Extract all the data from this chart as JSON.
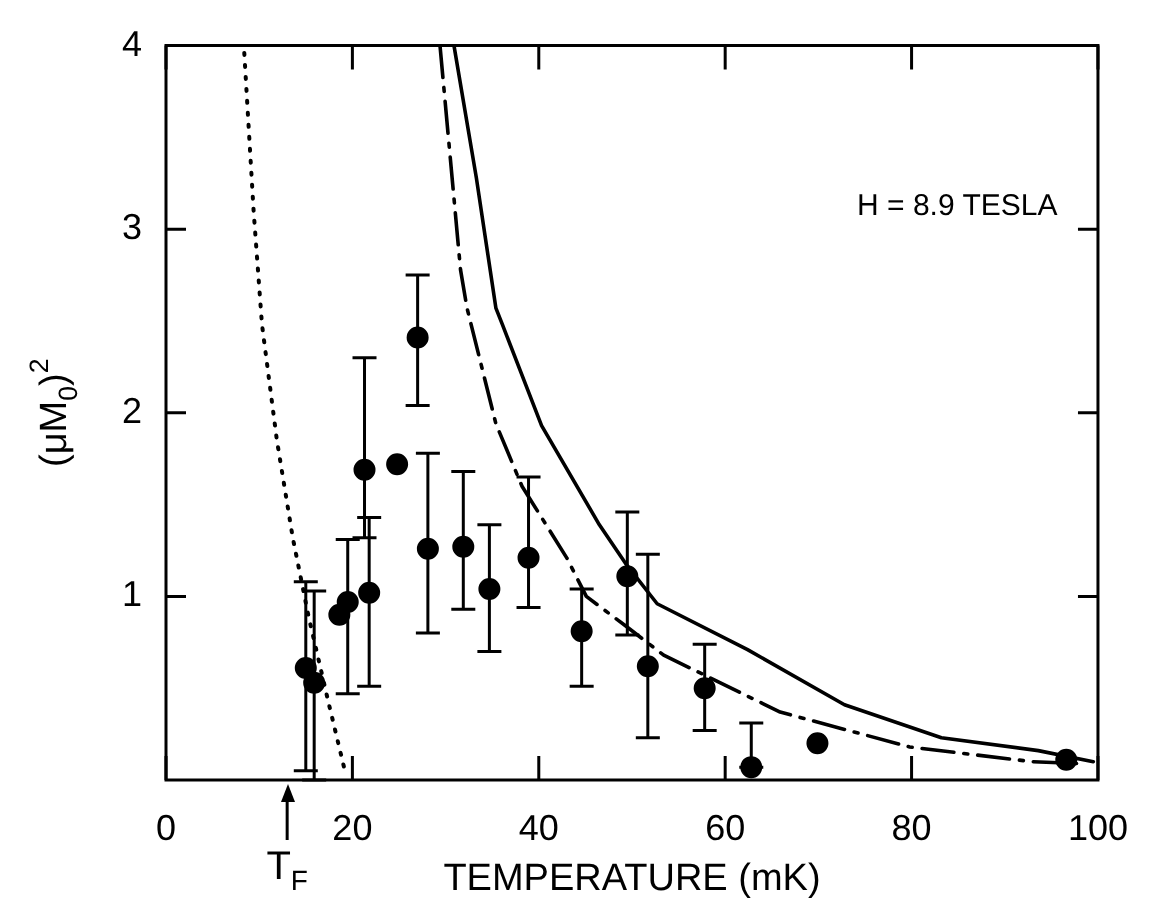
{
  "chart_data": {
    "type": "scatter",
    "xlabel": "TEMPERATURE (mK)",
    "ylabel": "(μM$_{0}$)$^{2}$",
    "xlim": [
      0,
      100
    ],
    "xticks": [
      0,
      20,
      40,
      60,
      80,
      100
    ],
    "ylim": [
      0,
      4
    ],
    "yticks": [
      1,
      2,
      3,
      4
    ],
    "grid": false,
    "legend": false,
    "annotations": [
      "H = 8.9 TESLA"
    ],
    "ref_lines": [
      {
        "axis": "x",
        "value": 13,
        "label": "T$_{F}$"
      }
    ],
    "series": [
      {
        "marker": "circle",
        "color": "#000000",
        "x": [
          15.0,
          15.9,
          18.6,
          19.5,
          21.3,
          21.8,
          24.8,
          27.0,
          28.1,
          31.9,
          34.7,
          38.9,
          44.6,
          49.5,
          51.7,
          57.8,
          62.8,
          69.9,
          96.6
        ],
        "values": [
          0.61,
          0.53,
          0.9,
          0.97,
          1.69,
          1.02,
          1.72,
          2.41,
          1.26,
          1.27,
          1.04,
          1.21,
          0.81,
          1.11,
          0.62,
          0.5,
          0.07,
          0.2,
          0.11
        ],
        "errors": [
          [
            0.05,
            1.08
          ],
          [
            0.0,
            1.03
          ],
          null,
          [
            0.47,
            1.31
          ],
          [
            1.32,
            2.3
          ],
          [
            0.51,
            1.43
          ],
          null,
          [
            2.04,
            2.75
          ],
          [
            0.8,
            1.78
          ],
          [
            0.93,
            1.68
          ],
          [
            0.7,
            1.39
          ],
          [
            0.94,
            1.65
          ],
          [
            0.51,
            1.04
          ],
          [
            0.79,
            1.46
          ],
          [
            0.23,
            1.23
          ],
          [
            0.27,
            0.74
          ],
          [
            0.07,
            0.31
          ],
          null,
          null
        ]
      },
      {
        "type": "line",
        "line_style": "solid",
        "color": "#000000",
        "x": [
          30.9,
          33.3,
          35.4,
          36.1,
          40.3,
          46.5,
          49.3,
          52.7,
          62.4,
          72.8,
          83.2,
          93.6,
          99.5
        ],
        "values": [
          4.0,
          3.28,
          2.57,
          2.48,
          1.93,
          1.39,
          1.18,
          0.96,
          0.71,
          0.41,
          0.23,
          0.16,
          0.1
        ]
      },
      {
        "type": "line",
        "line_style": "dashed",
        "color": "#000000",
        "x": [
          29.4,
          31.6,
          32.3,
          35.4,
          38.2,
          43.0,
          45.1,
          49.3,
          53.4,
          65.9,
          79.8,
          92.9,
          97.7
        ],
        "values": [
          4.0,
          2.78,
          2.57,
          1.94,
          1.6,
          1.21,
          1.0,
          0.84,
          0.68,
          0.37,
          0.18,
          0.1,
          0.09
        ]
      },
      {
        "type": "line",
        "line_style": "dotted",
        "color": "#000000",
        "x": [
          8.4,
          9.4,
          10.3,
          11.9,
          13.6,
          15.3,
          17.4,
          19.1
        ],
        "values": [
          3.96,
          3.1,
          2.48,
          1.85,
          1.32,
          0.89,
          0.43,
          0.07
        ]
      }
    ]
  }
}
